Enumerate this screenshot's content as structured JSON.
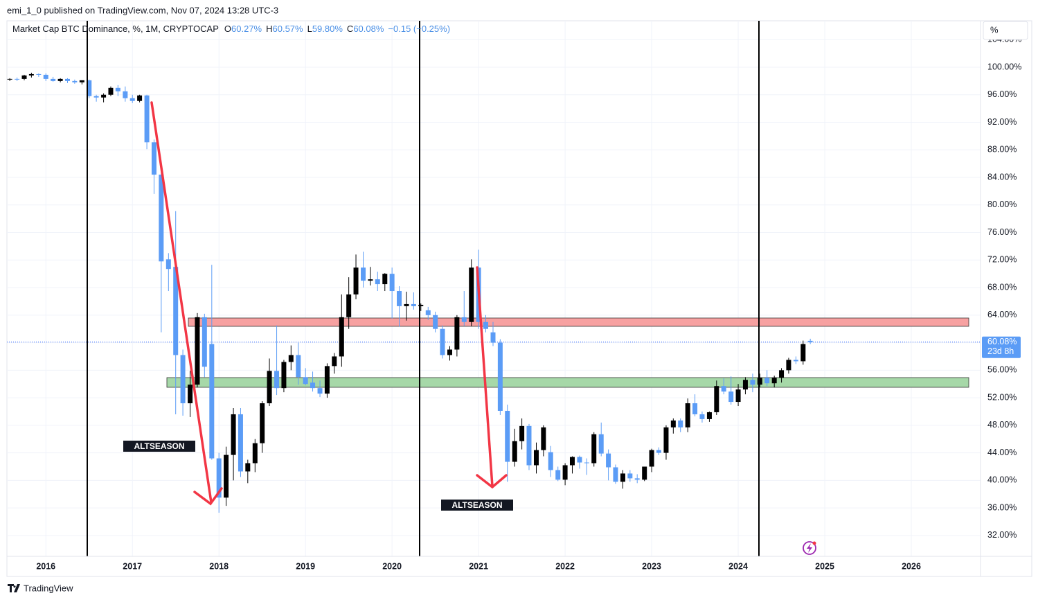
{
  "header": "emi_1_0 published on TradingView.com, Nov 07, 2024 13:28 UTC-3",
  "footer": "TradingView",
  "chart_data": {
    "type": "candlestick",
    "title": "Market Cap BTC Dominance, %, 1M, CRYPTOCAP",
    "legend": [
      {
        "key": "O",
        "value": "60.27%"
      },
      {
        "key": "H",
        "value": "60.57%"
      },
      {
        "key": "L",
        "value": "59.80%"
      },
      {
        "key": "C",
        "value": "60.08%"
      }
    ],
    "change": "−0.15 (−0.25%)",
    "unit_button": "%",
    "annotations": [
      "ALTSEASON",
      "ALTSEASON"
    ],
    "up_color": "#000000",
    "down_color": "#5b9cf6",
    "grid": true,
    "x": [
      2015.583,
      2015.667,
      2015.75,
      2015.833,
      2015.917,
      2016,
      2016.083,
      2016.167,
      2016.25,
      2016.333,
      2016.417,
      2016.5,
      2016.583,
      2016.667,
      2016.75,
      2016.833,
      2016.917,
      2017,
      2017.083,
      2017.167,
      2017.25,
      2017.333,
      2017.417,
      2017.5,
      2017.583,
      2017.667,
      2017.75,
      2017.833,
      2017.917,
      2018,
      2018.083,
      2018.167,
      2018.25,
      2018.333,
      2018.417,
      2018.5,
      2018.583,
      2018.667,
      2018.75,
      2018.833,
      2018.917,
      2019,
      2019.083,
      2019.167,
      2019.25,
      2019.333,
      2019.417,
      2019.5,
      2019.583,
      2019.667,
      2019.75,
      2019.833,
      2019.917,
      2020,
      2020.083,
      2020.167,
      2020.25,
      2020.333,
      2020.417,
      2020.5,
      2020.583,
      2020.667,
      2020.75,
      2020.833,
      2020.917,
      2021,
      2021.083,
      2021.167,
      2021.25,
      2021.333,
      2021.417,
      2021.5,
      2021.583,
      2021.667,
      2021.75,
      2021.833,
      2021.917,
      2022,
      2022.083,
      2022.167,
      2022.25,
      2022.333,
      2022.417,
      2022.5,
      2022.583,
      2022.667,
      2022.75,
      2022.833,
      2022.917,
      2023,
      2023.083,
      2023.167,
      2023.25,
      2023.333,
      2023.417,
      2023.5,
      2023.583,
      2023.667,
      2023.75,
      2023.833,
      2023.917,
      2024,
      2024.083,
      2024.167,
      2024.25,
      2024.333,
      2024.417,
      2024.5,
      2024.583,
      2024.667,
      2024.75,
      2024.833
    ],
    "open": [
      98.2,
      98.3,
      98.3,
      98.8,
      99.0,
      98.9,
      98.3,
      98.0,
      98.3,
      98.0,
      97.8,
      98.1,
      95.8,
      95.6,
      96.0,
      97.0,
      96.5,
      95.5,
      95.1,
      95.9,
      89.1,
      84.4,
      72.1,
      71.0,
      58.2,
      51.2,
      53.9,
      63.7,
      59.8,
      43.2,
      37.5,
      43.7,
      49.6,
      41.3,
      42.5,
      45.4,
      51.2,
      55.9,
      53.4,
      57.2,
      58.2,
      55.0,
      54.2,
      53.4,
      52.6,
      56.6,
      58.0,
      63.7,
      67.0,
      70.9,
      69.0,
      69.2,
      68.5,
      70.0,
      67.5,
      65.3,
      65.6,
      65.3,
      64.7,
      64.0,
      62.0,
      58.2,
      59.0,
      63.7,
      63.0,
      70.9,
      63.0,
      61.5,
      60.0,
      50.1,
      42.7,
      45.7,
      47.9,
      42.2,
      44.4,
      44.1,
      41.5,
      40.1,
      42.2,
      43.4,
      42.6,
      42.5,
      46.7,
      43.9,
      41.9,
      39.8,
      41.0,
      40.3,
      40.1,
      42.0,
      44.4,
      44.0,
      47.7,
      48.7,
      47.7,
      51.2,
      49.6,
      48.9,
      49.9,
      53.7,
      52.9,
      51.4,
      53.2,
      54.6,
      53.9,
      54.9,
      54.1,
      54.9,
      56.0,
      57.5,
      57.3,
      60.27
    ],
    "high": [
      98.4,
      98.5,
      98.9,
      99.2,
      99.1,
      99.1,
      98.6,
      98.4,
      98.4,
      98.2,
      98.1,
      98.2,
      96.0,
      96.2,
      97.2,
      97.4,
      97.2,
      96.0,
      96.0,
      96.0,
      89.5,
      85.0,
      73.0,
      79.1,
      59.0,
      55.9,
      64.3,
      64.2,
      71.3,
      44.0,
      44.9,
      50.5,
      50.5,
      43.0,
      46.0,
      51.5,
      57.7,
      62.5,
      57.5,
      59.6,
      60.0,
      56.3,
      55.8,
      54.5,
      57.0,
      58.5,
      67.0,
      69.5,
      72.8,
      73.2,
      71.0,
      70.3,
      70.1,
      70.9,
      68.2,
      67.4,
      67.3,
      65.7,
      65.2,
      64.5,
      62.5,
      59.5,
      64.0,
      67.5,
      72.1,
      73.5,
      64.0,
      63.0,
      60.5,
      51.0,
      47.5,
      49.0,
      48.2,
      45.5,
      48.0,
      45.0,
      42.0,
      42.5,
      43.5,
      43.6,
      43.2,
      47.0,
      48.4,
      44.5,
      42.3,
      41.5,
      41.5,
      40.9,
      42.0,
      44.6,
      44.8,
      48.0,
      49.0,
      49.0,
      51.9,
      52.5,
      50.0,
      50.0,
      54.5,
      54.8,
      55.1,
      54.0,
      55.0,
      55.5,
      55.5,
      56.0,
      55.2,
      56.3,
      57.8,
      58.0,
      60.3,
      60.57
    ],
    "low": [
      98.0,
      98.0,
      98.1,
      98.5,
      98.6,
      98.0,
      97.9,
      97.8,
      97.7,
      97.6,
      97.5,
      95.5,
      95.0,
      94.9,
      95.8,
      95.8,
      95.0,
      94.8,
      94.9,
      88.1,
      81.6,
      61.5,
      67.5,
      49.6,
      49.4,
      49.2,
      53.5,
      55.0,
      43.0,
      35.3,
      36.3,
      40.0,
      40.5,
      39.6,
      41.2,
      44.0,
      50.8,
      52.4,
      52.8,
      56.0,
      53.9,
      53.8,
      52.9,
      52.1,
      52.0,
      55.5,
      56.5,
      62.0,
      66.3,
      68.0,
      68.3,
      67.5,
      67.5,
      63.5,
      62.3,
      63.2,
      64.8,
      64.6,
      63.3,
      61.5,
      57.7,
      57.4,
      58.0,
      62.4,
      62.4,
      62.0,
      61.5,
      59.5,
      49.5,
      39.8,
      42.0,
      44.5,
      41.5,
      41.0,
      43.5,
      40.5,
      39.9,
      39.3,
      41.0,
      41.7,
      40.8,
      42.0,
      43.5,
      40.0,
      39.5,
      38.8,
      39.8,
      39.6,
      39.9,
      41.2,
      43.7,
      43.0,
      46.8,
      47.0,
      47.0,
      49.3,
      48.4,
      48.5,
      49.5,
      52.5,
      51.0,
      50.8,
      52.5,
      52.8,
      53.5,
      53.7,
      53.5,
      54.2,
      55.5,
      56.9,
      56.8,
      59.8
    ],
    "close": [
      98.3,
      98.2,
      98.8,
      99.0,
      98.9,
      98.3,
      98.0,
      98.3,
      98.0,
      97.8,
      98.1,
      95.8,
      95.6,
      96.0,
      97.0,
      96.5,
      95.5,
      95.1,
      95.9,
      89.1,
      84.4,
      71.8,
      70.7,
      58.2,
      51.2,
      53.9,
      63.7,
      56.5,
      43.2,
      37.5,
      43.7,
      49.6,
      41.3,
      42.5,
      45.4,
      51.2,
      55.9,
      53.4,
      57.2,
      58.2,
      55.0,
      54.0,
      53.4,
      52.6,
      56.6,
      58.0,
      63.7,
      67.0,
      70.9,
      69.0,
      69.2,
      68.5,
      70.0,
      67.5,
      65.3,
      65.6,
      65.3,
      65.5,
      64.0,
      62.0,
      58.2,
      59.0,
      63.7,
      63.0,
      70.9,
      63.0,
      62.0,
      60.0,
      50.1,
      42.7,
      45.7,
      47.9,
      42.2,
      44.4,
      47.7,
      41.5,
      40.1,
      42.2,
      43.4,
      42.6,
      42.5,
      46.7,
      43.9,
      41.9,
      39.8,
      41.0,
      40.3,
      40.1,
      42.0,
      44.4,
      44.0,
      47.7,
      48.7,
      47.7,
      51.2,
      49.6,
      48.9,
      49.9,
      53.7,
      52.9,
      51.4,
      53.2,
      54.6,
      53.9,
      54.9,
      54.1,
      54.9,
      56.0,
      57.5,
      57.3,
      59.8,
      60.08
    ],
    "xlim": [
      2015.55,
      2026.8
    ],
    "xticks": [
      2016,
      2017,
      2018,
      2019,
      2020,
      2021,
      2022,
      2023,
      2024,
      2025,
      2026
    ],
    "ylim": [
      28.97,
      106.74
    ],
    "yticks": [
      {
        "value": 32,
        "label": "32.00%"
      },
      {
        "value": 36,
        "label": "36.00%"
      },
      {
        "value": 40,
        "label": "40.00%"
      },
      {
        "value": 44,
        "label": "44.00%"
      },
      {
        "value": 48,
        "label": "48.00%"
      },
      {
        "value": 52,
        "label": "52.00%"
      },
      {
        "value": 56,
        "label": "56.00%"
      },
      {
        "value": 60,
        "label": "60.00%"
      },
      {
        "value": 64,
        "label": "64.00%"
      },
      {
        "value": 68,
        "label": "68.00%"
      },
      {
        "value": 72,
        "label": "72.00%"
      },
      {
        "value": 76,
        "label": "76.00%"
      },
      {
        "value": 80,
        "label": "80.00%"
      },
      {
        "value": 84,
        "label": "84.00%"
      },
      {
        "value": 88,
        "label": "88.00%"
      },
      {
        "value": 92,
        "label": "92.00%"
      },
      {
        "value": 96,
        "label": "96.00%"
      },
      {
        "value": 100,
        "label": "100.00%"
      },
      {
        "value": 104,
        "label": "104.00%"
      }
    ],
    "last_price": {
      "value": 60.08,
      "label": "60.08%"
    },
    "countdown": "23d 8h"
  }
}
